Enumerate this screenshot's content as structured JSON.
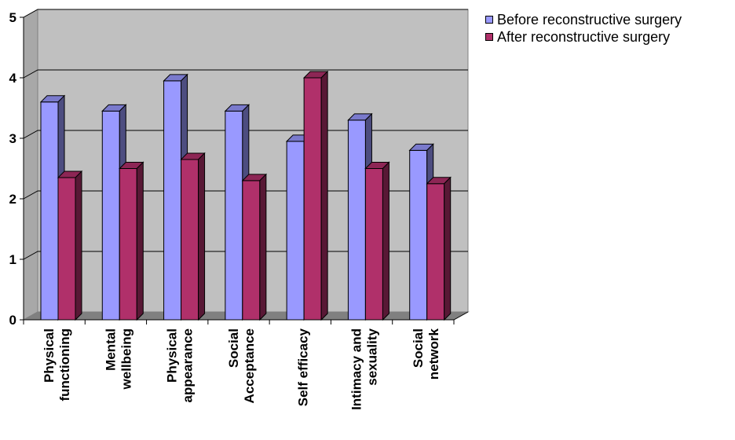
{
  "chart_data": {
    "type": "bar",
    "categories": [
      [
        "Physical",
        "functioning"
      ],
      [
        "Mental",
        "wellbeing"
      ],
      [
        "Physical",
        "appearance"
      ],
      [
        "Social",
        "Acceptance"
      ],
      [
        "Self efficacy"
      ],
      [
        "Intimacy and",
        "sexuality"
      ],
      [
        "Social",
        "network"
      ]
    ],
    "series": [
      {
        "name": "Before reconstructive surgery",
        "color": "#9999ff",
        "values": [
          3.6,
          3.45,
          3.95,
          3.45,
          2.95,
          3.3,
          2.8
        ]
      },
      {
        "name": "After reconstructive surgery",
        "color": "#b0306a",
        "values": [
          2.35,
          2.5,
          2.65,
          2.3,
          4.0,
          2.5,
          2.25
        ]
      }
    ],
    "ylim": [
      0,
      5
    ],
    "yticks": [
      "0",
      "1",
      "2",
      "3",
      "4",
      "5"
    ],
    "grid": true,
    "legend_position": "top-right",
    "title": "",
    "xlabel": "",
    "ylabel": ""
  }
}
